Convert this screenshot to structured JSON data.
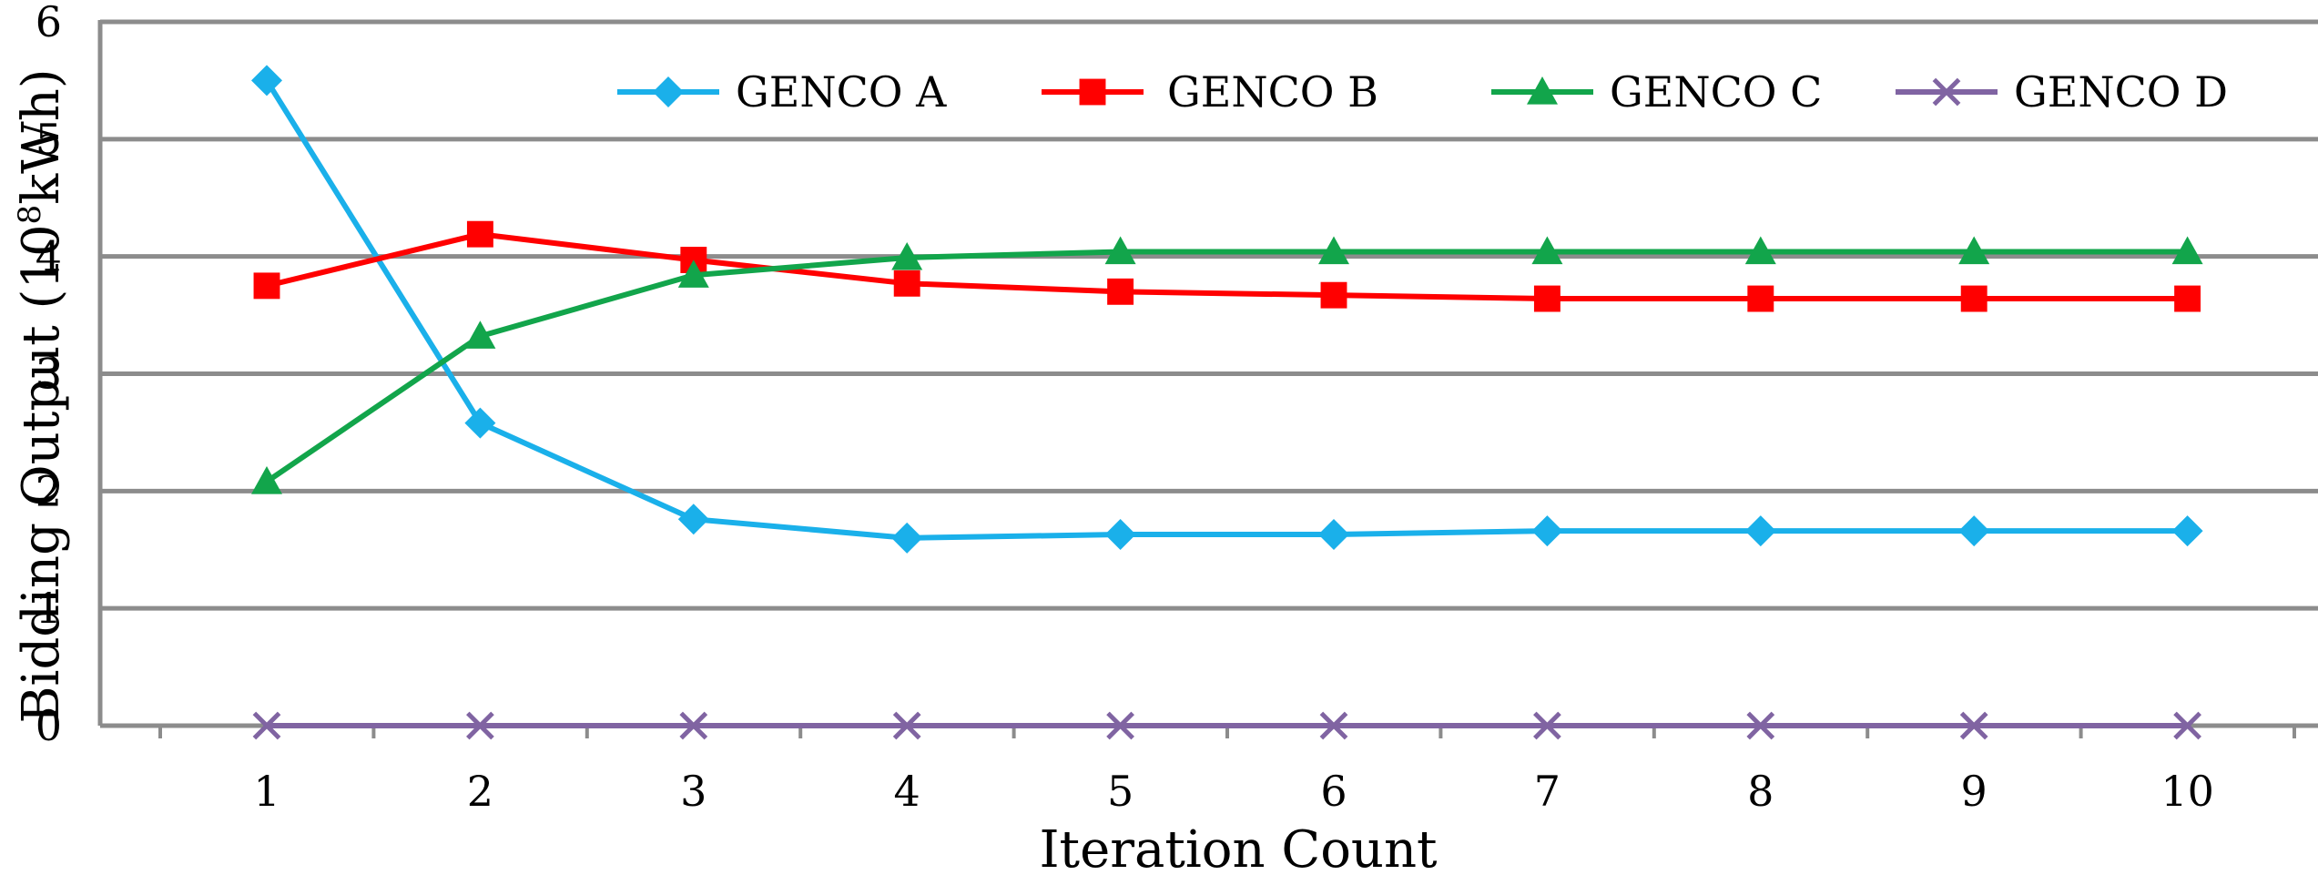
{
  "chart_data": {
    "type": "line",
    "title": "",
    "xlabel": "Iteration Count",
    "ylabel_main": "Bidding Output (10",
    "ylabel_sup": "8",
    "ylabel_unit": "kWh)",
    "x": [
      1,
      2,
      3,
      4,
      5,
      6,
      7,
      8,
      9,
      10
    ],
    "x_tick_labels": [
      "1",
      "2",
      "3",
      "4",
      "5",
      "6",
      "7",
      "8",
      "9",
      "10"
    ],
    "ylim": [
      0,
      6
    ],
    "y_ticks": [
      0,
      1,
      2,
      3,
      4,
      5,
      6
    ],
    "y_tick_labels": [
      "0",
      "1",
      "2",
      "3",
      "4",
      "5",
      "6"
    ],
    "grid": true,
    "legend_position": "top-right",
    "series": [
      {
        "name": "GENCO A",
        "color": "#1ab0ea",
        "marker": "diamond",
        "values": [
          5.5,
          2.58,
          1.76,
          1.6,
          1.63,
          1.63,
          1.66,
          1.66,
          1.66,
          1.66
        ]
      },
      {
        "name": "GENCO B",
        "color": "#ff0000",
        "marker": "square",
        "values": [
          3.75,
          4.19,
          3.97,
          3.77,
          3.7,
          3.67,
          3.64,
          3.64,
          3.64,
          3.64
        ]
      },
      {
        "name": "GENCO C",
        "color": "#12a54b",
        "marker": "triangle",
        "values": [
          2.08,
          3.32,
          3.84,
          3.99,
          4.04,
          4.04,
          4.04,
          4.04,
          4.04,
          4.04
        ]
      },
      {
        "name": "GENCO D",
        "color": "#8064a2",
        "marker": "x",
        "values": [
          0,
          0,
          0,
          0,
          0,
          0,
          0,
          0,
          0,
          0
        ]
      }
    ]
  }
}
